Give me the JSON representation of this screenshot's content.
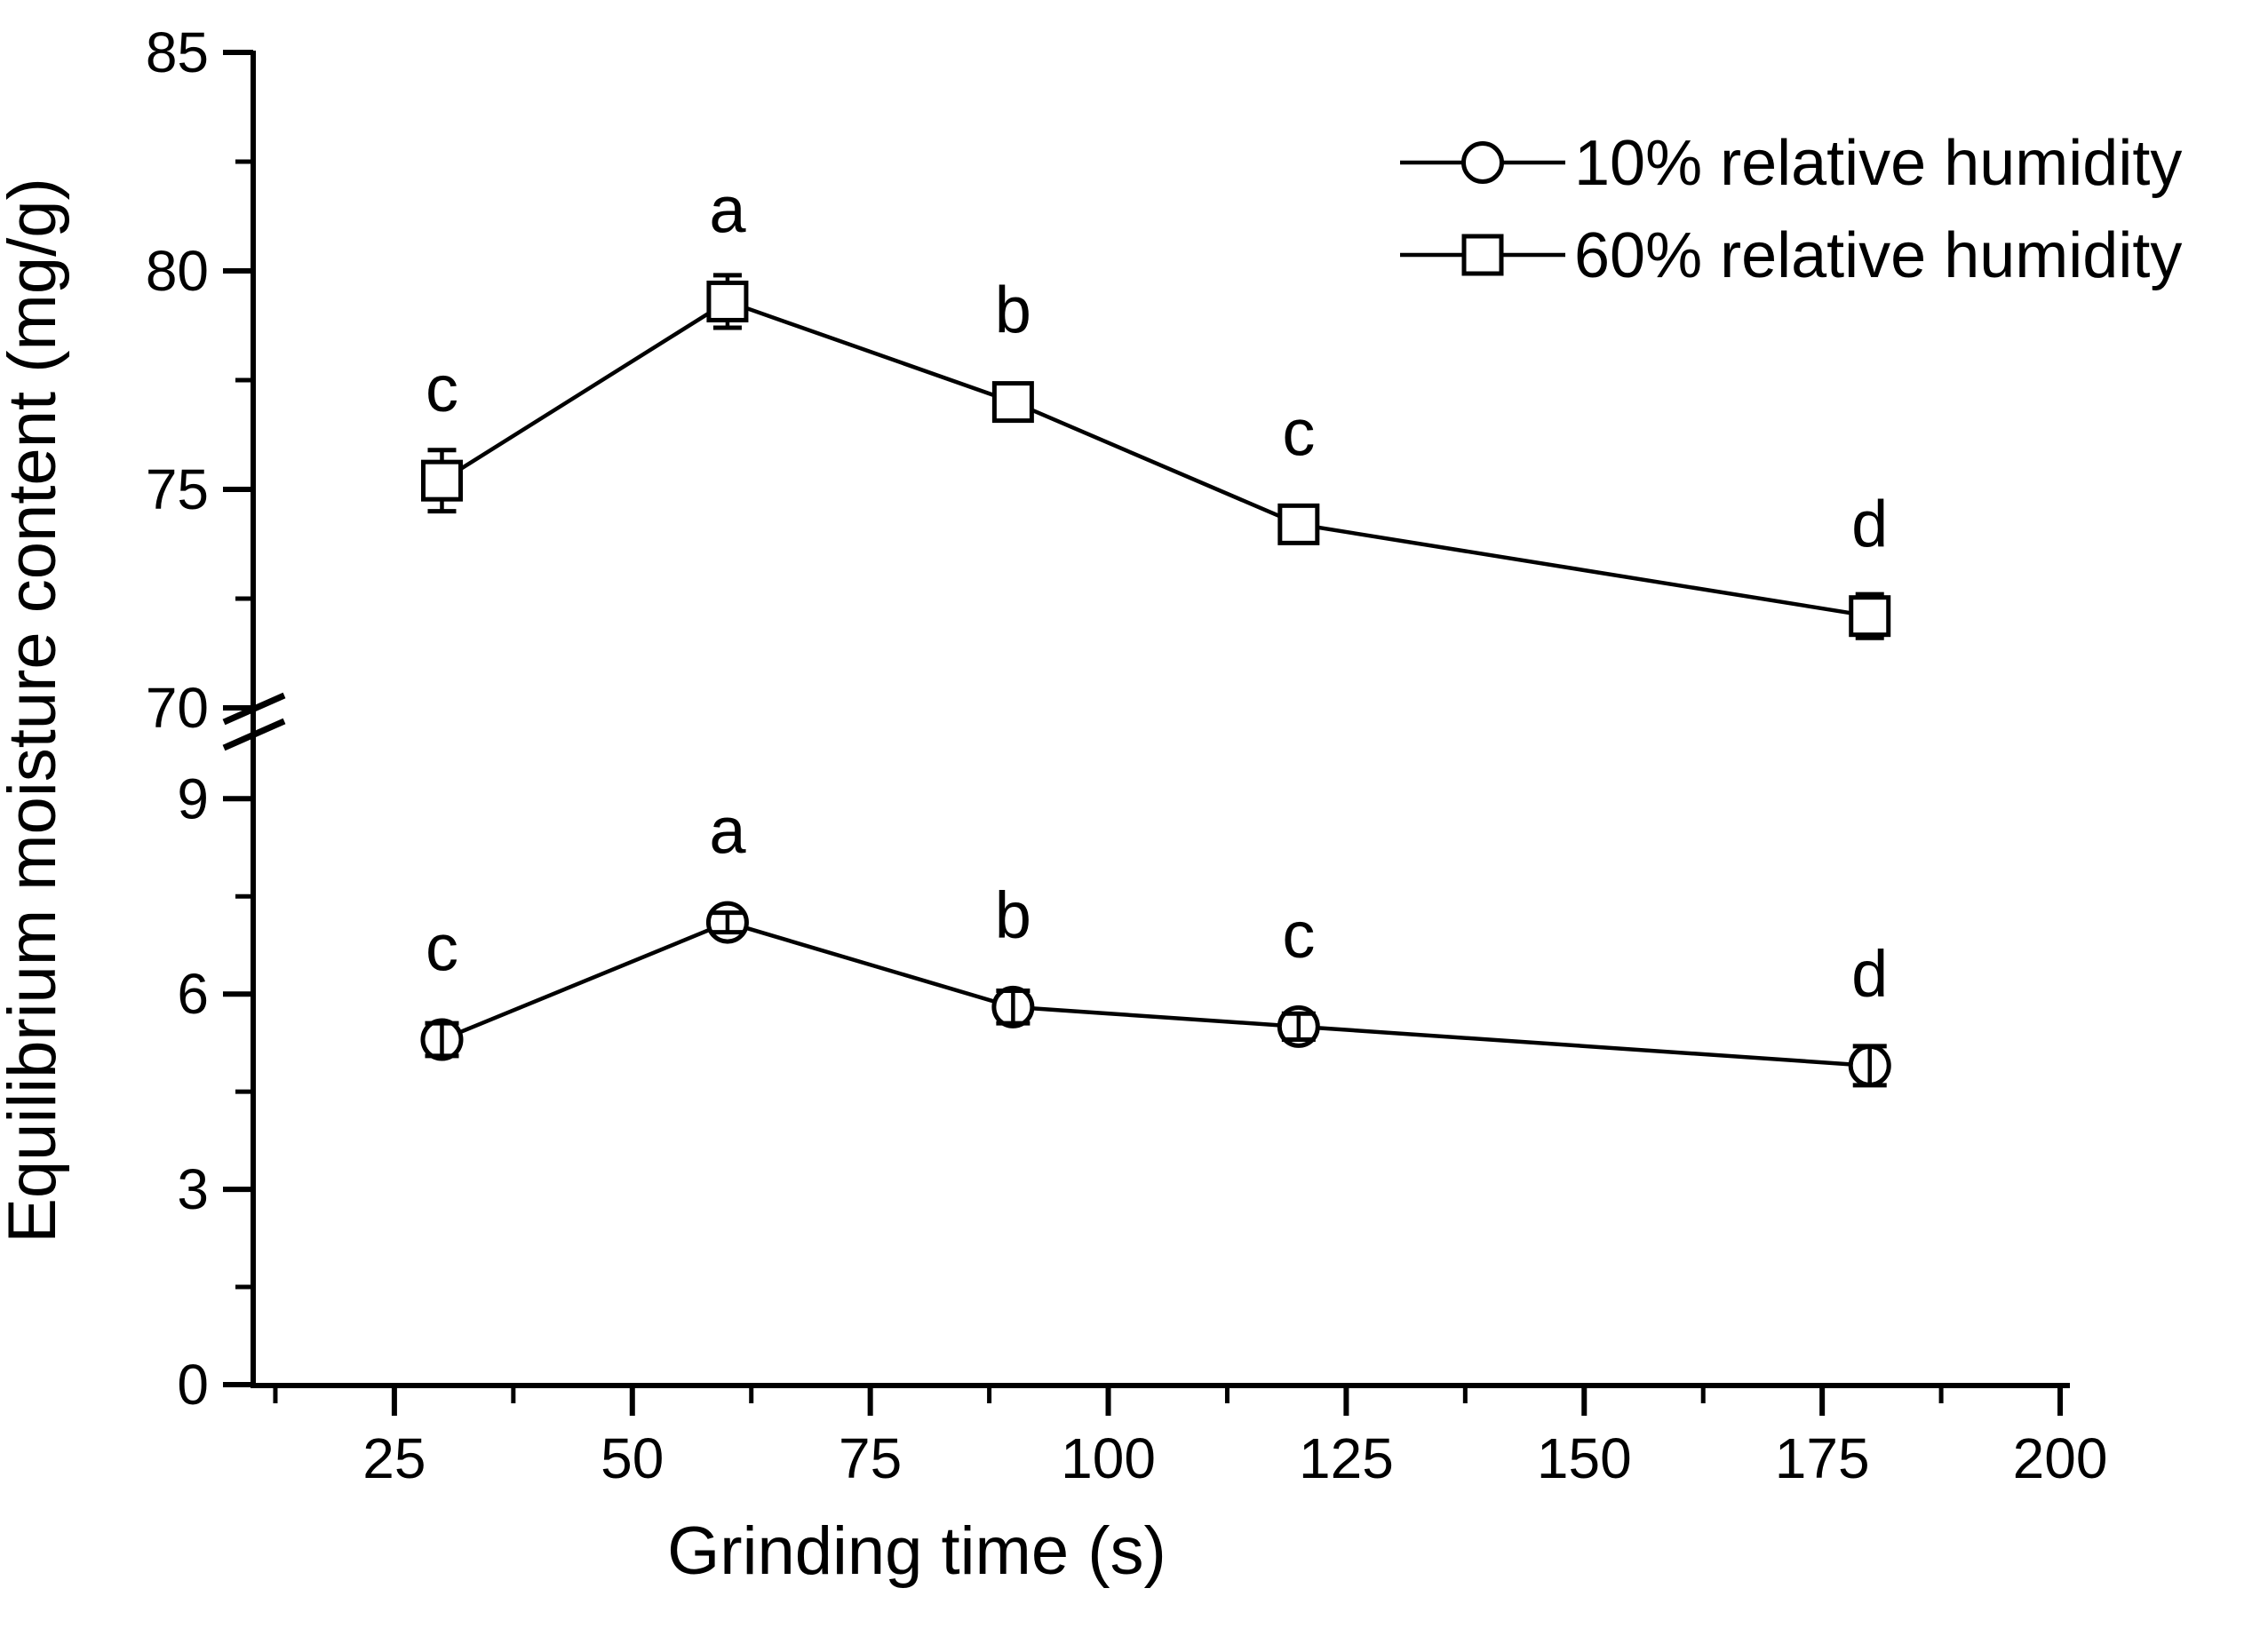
{
  "figure": {
    "background": "#ffffff",
    "ink_color": "#000000"
  },
  "chart_data": {
    "type": "line",
    "title": "",
    "xlabel": "Grinding time (s)",
    "ylabel": "Equilibrium moisture content (mg/g)",
    "grid": false,
    "legend_position": "top-right",
    "x_axis": {
      "range": [
        10,
        200
      ],
      "ticks_major": [
        25,
        50,
        75,
        100,
        125,
        150,
        175,
        200
      ],
      "ticks_minor": [
        12.5,
        37.5,
        62.5,
        87.5,
        112.5,
        137.5,
        162.5,
        187.5
      ]
    },
    "y_axis": {
      "broken": true,
      "upper_section": {
        "range": [
          70,
          85
        ],
        "ticks_major": [
          70,
          75,
          80,
          85
        ],
        "ticks_minor": [
          72.5,
          77.5,
          82.5
        ]
      },
      "lower_section": {
        "range": [
          0,
          9
        ],
        "ticks_major": [
          0,
          3,
          6,
          9
        ],
        "ticks_minor": [
          1.5,
          4.5,
          7.5
        ]
      }
    },
    "series": [
      {
        "name": "10% relative humidity",
        "marker": "circle",
        "axis_section": "lower",
        "color": "#000000",
        "points": [
          {
            "t": 30,
            "v": 5.3,
            "err": 0.25,
            "letter": "c"
          },
          {
            "t": 60,
            "v": 7.1,
            "err": 0.15,
            "letter": "a"
          },
          {
            "t": 90,
            "v": 5.8,
            "err": 0.25,
            "letter": "b"
          },
          {
            "t": 120,
            "v": 5.5,
            "err": 0.2,
            "letter": "c"
          },
          {
            "t": 180,
            "v": 4.9,
            "err": 0.3,
            "letter": "d"
          }
        ]
      },
      {
        "name": "60% relative humidity",
        "marker": "square",
        "axis_section": "upper",
        "color": "#000000",
        "points": [
          {
            "t": 30,
            "v": 75.2,
            "err": 0.7,
            "letter": "c"
          },
          {
            "t": 60,
            "v": 79.3,
            "err": 0.6,
            "letter": "a"
          },
          {
            "t": 90,
            "v": 77.0,
            "err": 0.15,
            "letter": "b"
          },
          {
            "t": 120,
            "v": 74.2,
            "err": 0.4,
            "letter": "c"
          },
          {
            "t": 180,
            "v": 72.1,
            "err": 0.5,
            "letter": "d"
          }
        ]
      }
    ],
    "legend": {
      "entries": [
        "10% relative humidity",
        "60% relative humidity"
      ]
    }
  }
}
